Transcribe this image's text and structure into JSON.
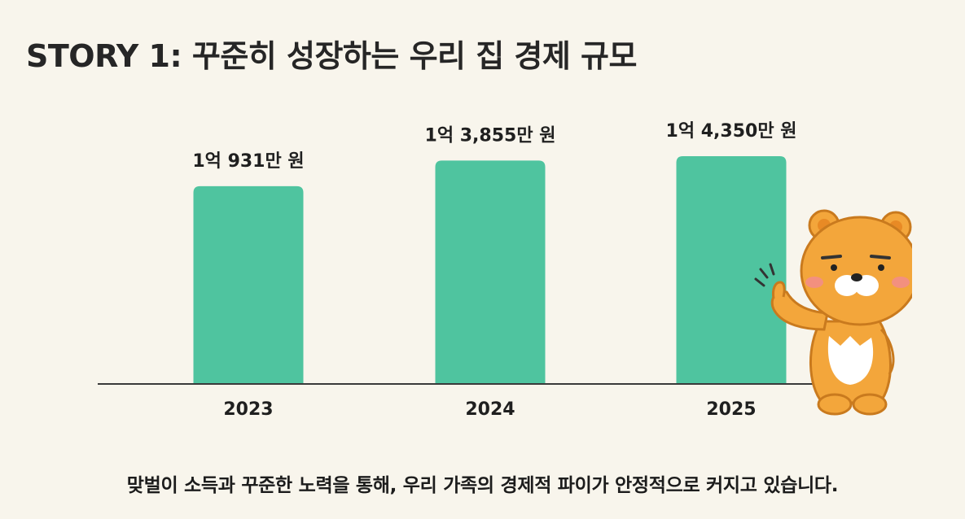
{
  "title": "STORY 1: 꾸준히 성장하는 우리 집 경제 규모",
  "caption": "맞벌이 소득과 꾸준한 노력을 통해, 우리 가족의 경제적 파이가 안정적으로 커지고 있습니다.",
  "colors": {
    "background": "#f8f5ec",
    "bar": "#4fc49f",
    "axis": "#3a3a3a",
    "text": "#1f1f1f",
    "mascot_body": "#f3a63b",
    "mascot_outline": "#c97a1e"
  },
  "mascot_icon": "bear-thumbs-up-icon",
  "chart_data": {
    "type": "bar",
    "title": "STORY 1: 꾸준히 성장하는 우리 집 경제 규모",
    "categories": [
      "2023",
      "2024",
      "2025"
    ],
    "values": [
      10931,
      13855,
      14350
    ],
    "unit": "만 원",
    "data_labels": [
      "1억 931만 원",
      "1억 3,855만 원",
      "1억 4,350만 원"
    ],
    "xlabel": "",
    "ylabel": "",
    "ylim": [
      0,
      16000
    ],
    "grid": false,
    "legend": "none"
  }
}
